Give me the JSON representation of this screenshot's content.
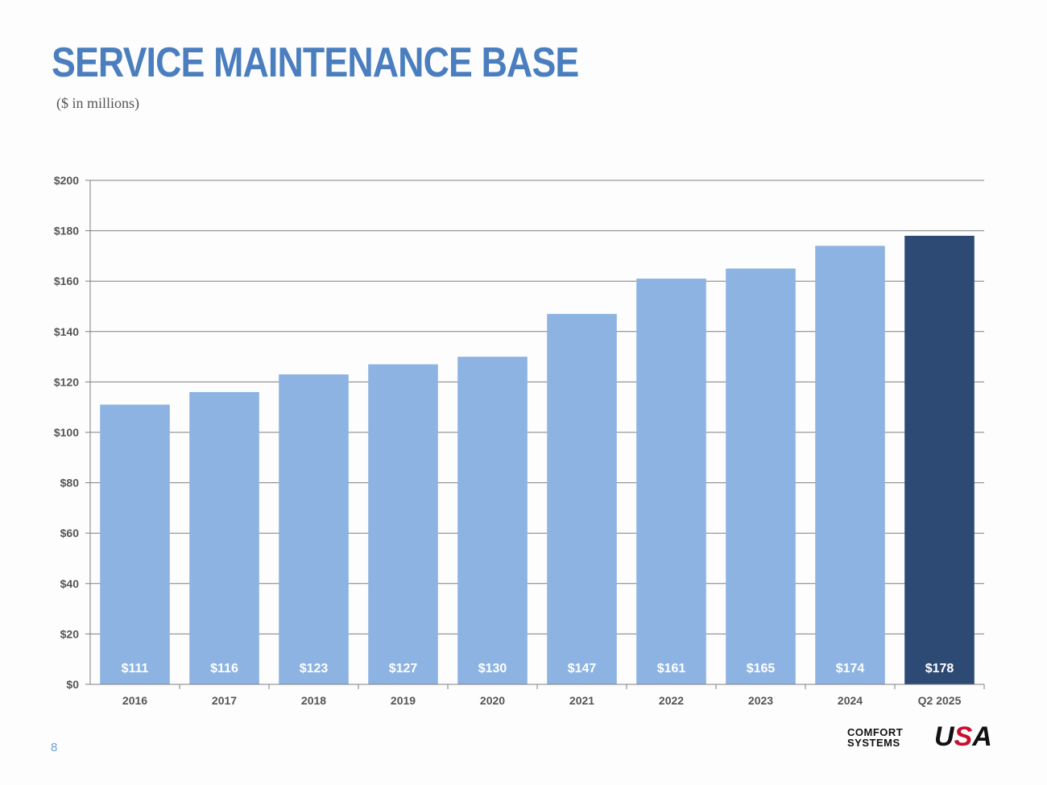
{
  "header": {
    "title": "SERVICE MAINTENANCE BASE",
    "subtitle": "($ in millions)"
  },
  "chart_data": {
    "type": "bar",
    "categories": [
      "2016",
      "2017",
      "2018",
      "2019",
      "2020",
      "2021",
      "2022",
      "2023",
      "2024",
      "Q2 2025"
    ],
    "values": [
      111,
      116,
      123,
      127,
      130,
      147,
      161,
      165,
      174,
      178
    ],
    "value_labels": [
      "$111",
      "$116",
      "$123",
      "$127",
      "$130",
      "$147",
      "$161",
      "$165",
      "$174",
      "$178"
    ],
    "y_ticks": [
      0,
      20,
      40,
      60,
      80,
      100,
      120,
      140,
      160,
      180,
      200
    ],
    "y_tick_labels": [
      "$0",
      "$20",
      "$40",
      "$60",
      "$80",
      "$100",
      "$120",
      "$140",
      "$160",
      "$180",
      "$200"
    ],
    "ylim": [
      0,
      200
    ],
    "grid": true,
    "highlight_index": 9,
    "colors": {
      "bar": "#8db3e2",
      "highlight": "#2c4a73",
      "grid": "#7f7f7f",
      "label": "#ffffff"
    }
  },
  "footer": {
    "page_number": "8",
    "logo": {
      "line1": "COMFORT",
      "line2": "SYSTEMS",
      "mark_u": "U",
      "mark_s": "S",
      "mark_a": "A"
    }
  }
}
